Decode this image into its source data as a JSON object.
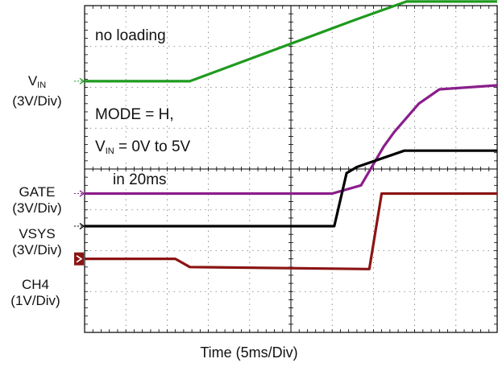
{
  "chart_data": {
    "type": "line",
    "x_divisions": 10,
    "y_divisions": 8,
    "time_per_div_ms": 5,
    "xlabel": "Time  (5ms/Div)",
    "grid": true,
    "annotations": {
      "line1": "no loading",
      "line2": "MODE = H,",
      "line3_prefix": "V",
      "line3_sub": "IN",
      "line3_suffix": " = 0V to 5V",
      "line4": "in 20ms"
    },
    "channels": [
      {
        "name_prefix": "V",
        "name_sub": "IN",
        "scale": "(3V/Div)",
        "color": "#1f9a1f",
        "marker": "arrow",
        "points": [
          [
            0.0,
            6.15
          ],
          [
            2.55,
            6.15
          ],
          [
            6.55,
            7.65
          ],
          [
            7.8,
            8.1
          ],
          [
            10.0,
            8.1
          ]
        ]
      },
      {
        "name_prefix": "GATE",
        "name_sub": "",
        "scale": "(3V/Div)",
        "color": "#8b1e8b",
        "marker": "arrow",
        "points": [
          [
            0.0,
            3.4
          ],
          [
            6.0,
            3.4
          ],
          [
            6.7,
            3.6
          ],
          [
            7.25,
            4.55
          ],
          [
            7.5,
            4.9
          ],
          [
            8.1,
            5.6
          ],
          [
            8.6,
            5.95
          ],
          [
            10.0,
            6.05
          ]
        ]
      },
      {
        "name_prefix": "VSYS",
        "name_sub": "",
        "scale": "(3V/Div)",
        "color": "#000000",
        "marker": "arrow",
        "points": [
          [
            0.0,
            2.6
          ],
          [
            6.05,
            2.6
          ],
          [
            6.35,
            3.9
          ],
          [
            6.6,
            4.05
          ],
          [
            7.75,
            4.45
          ],
          [
            10.0,
            4.45
          ]
        ]
      },
      {
        "name_prefix": "CH4",
        "name_sub": "",
        "scale": "(1V/Div)",
        "color": "#8b1414",
        "marker": "box",
        "points": [
          [
            0.0,
            1.8
          ],
          [
            2.2,
            1.8
          ],
          [
            2.55,
            1.6
          ],
          [
            6.9,
            1.55
          ],
          [
            7.2,
            3.4
          ],
          [
            10.0,
            3.4
          ]
        ]
      }
    ]
  }
}
